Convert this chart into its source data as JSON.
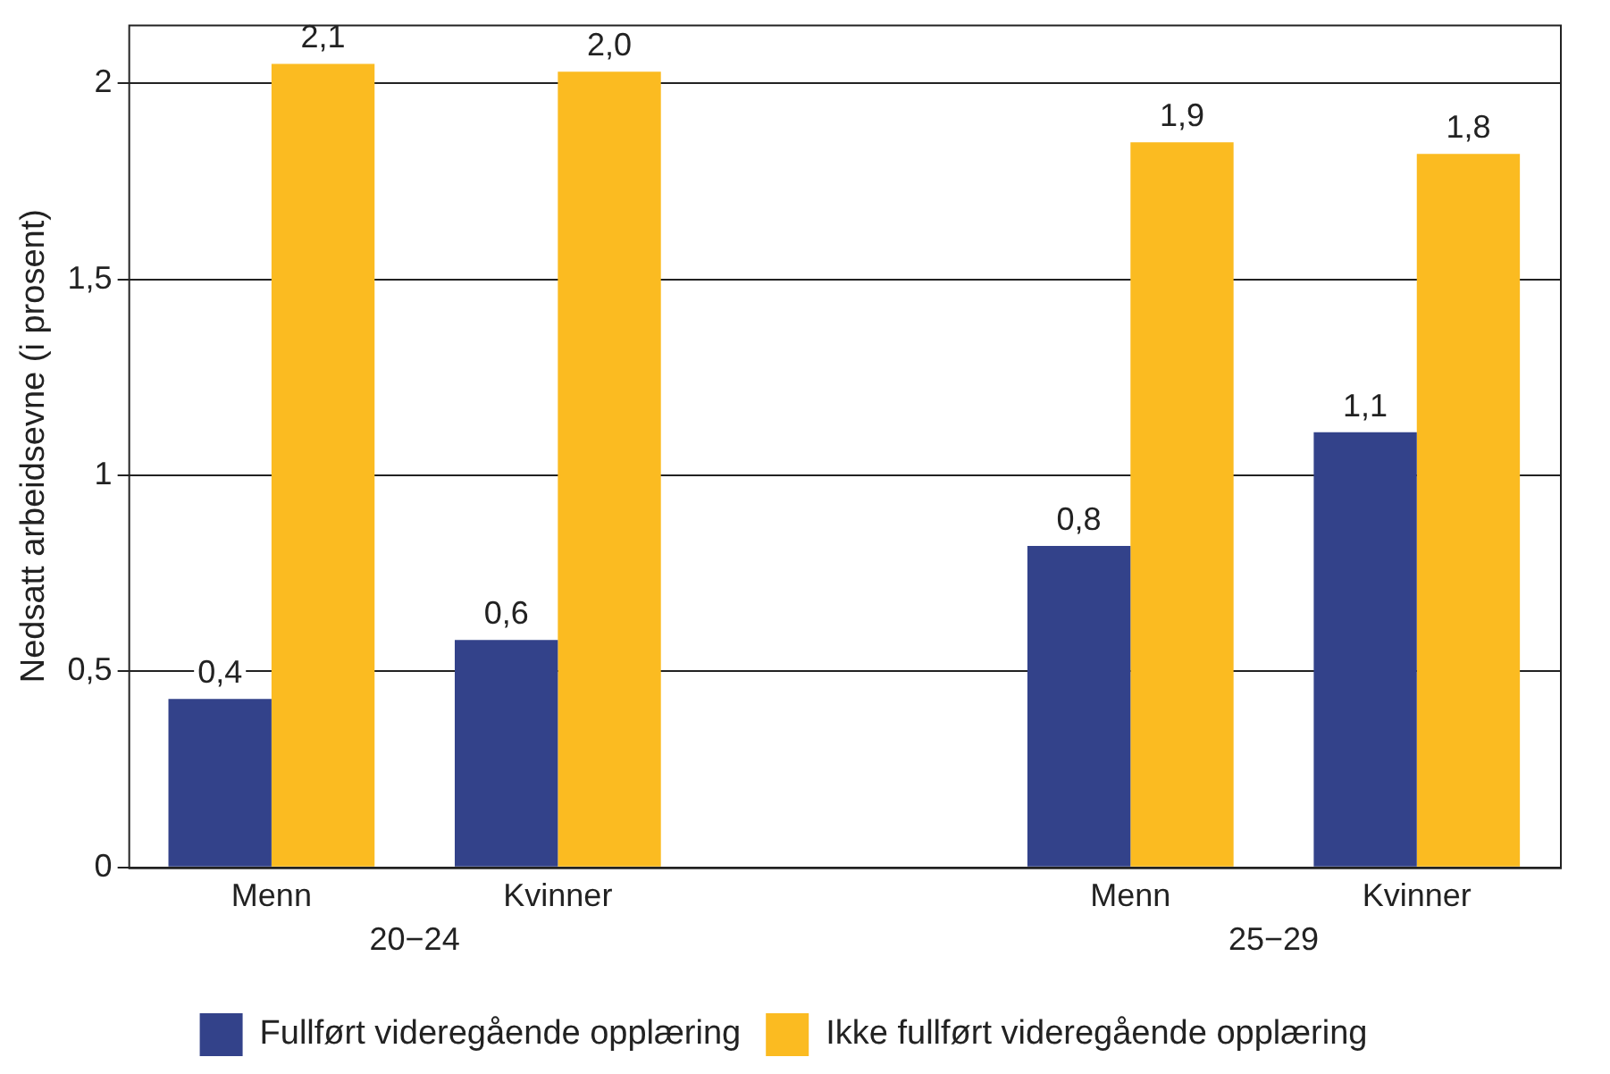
{
  "chart_data": {
    "type": "bar",
    "ylabel": "Nedsatt arbeidsevne (i prosent)",
    "categories": [
      "Menn",
      "Kvinner",
      null,
      "Menn",
      "Kvinner"
    ],
    "series": [
      {
        "name": "Fullført videregående opplæring",
        "color": "#33428a",
        "values": [
          0.43,
          0.58,
          null,
          0.82,
          1.11
        ],
        "value_labels": [
          "0,4",
          "0,6",
          null,
          "0,8",
          "1,1"
        ]
      },
      {
        "name": "Ikke fullført videregående opplæring",
        "color": "#fbbb21",
        "values": [
          2.05,
          2.03,
          null,
          1.85,
          1.82
        ],
        "value_labels": [
          "2,1",
          "2,0",
          null,
          "1,9",
          "1,8"
        ]
      }
    ],
    "annotations": [
      "20−24",
      "25−29"
    ],
    "ylim": [
      0,
      2.15
    ],
    "yticks": [
      0,
      {
        "value": 0.5,
        "label": "0,5"
      },
      1,
      {
        "value": 1.5,
        "label": "1,5"
      },
      2
    ],
    "grid": "y",
    "legend": "bottom"
  }
}
